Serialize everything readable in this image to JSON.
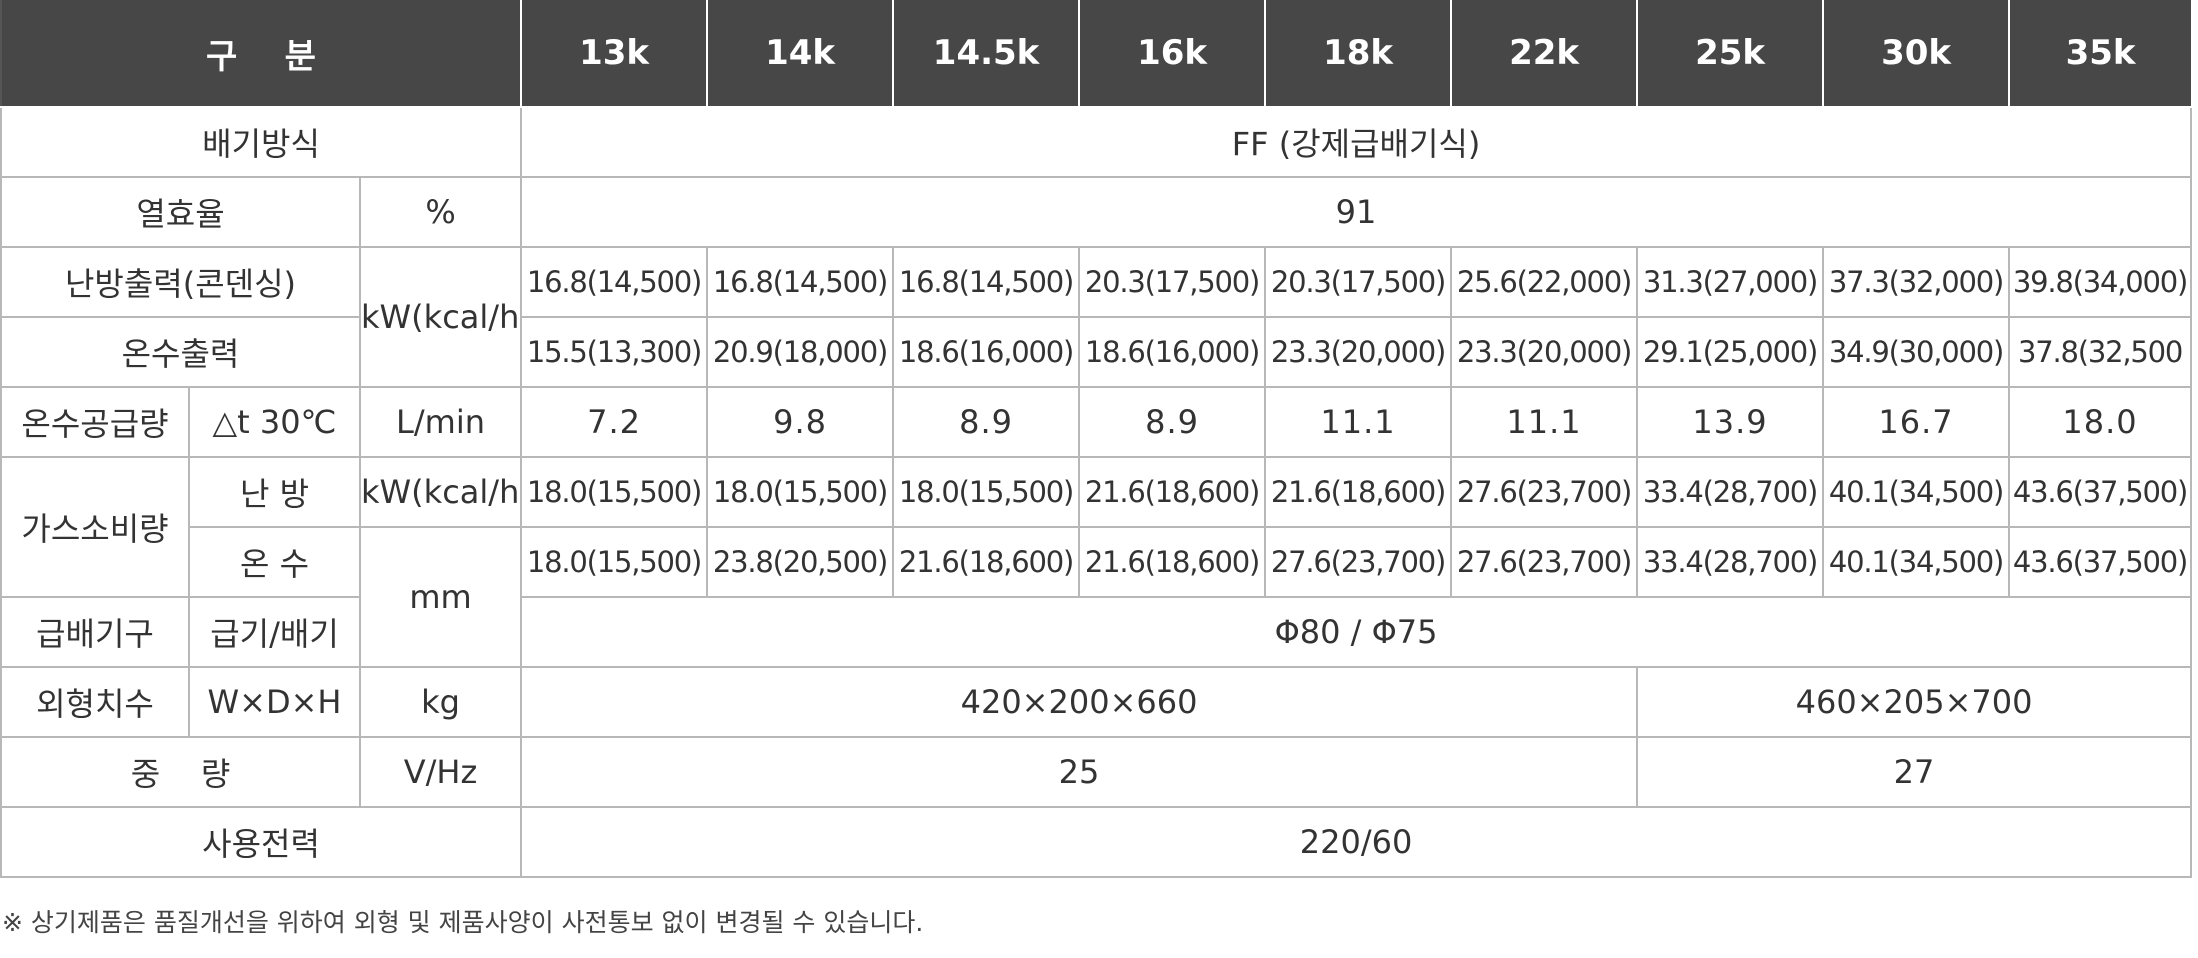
{
  "header": {
    "category": "구    분",
    "models": [
      "13k",
      "14k",
      "14.5k",
      "16k",
      "18k",
      "22k",
      "25k",
      "30k",
      "35k"
    ]
  },
  "rows": {
    "exhaust": {
      "label": "배기방식",
      "value": "FF (강제급배기식)"
    },
    "efficiency": {
      "label": "열효율",
      "unit": "%",
      "value": "91"
    },
    "heating_output": {
      "label": "난방출력(콘덴싱)",
      "unit": "kW(kcal/h)",
      "values": [
        "16.8(14,500)",
        "16.8(14,500)",
        "16.8(14,500)",
        "20.3(17,500)",
        "20.3(17,500)",
        "25.6(22,000)",
        "31.3(27,000)",
        "37.3(32,000)",
        "39.8(34,000)"
      ]
    },
    "hot_water_output": {
      "label": "온수출력",
      "values": [
        "15.5(13,300)",
        "20.9(18,000)",
        "18.6(16,000)",
        "18.6(16,000)",
        "23.3(20,000)",
        "23.3(20,000)",
        "29.1(25,000)",
        "34.9(30,000)",
        "37.8(32,500"
      ]
    },
    "hot_water_supply": {
      "label": "온수공급량",
      "sub": "△t 30℃",
      "unit": "L/min",
      "values": [
        "7.2",
        "9.8",
        "8.9",
        "8.9",
        "11.1",
        "11.1",
        "13.9",
        "16.7",
        "18.0"
      ]
    },
    "gas_consumption": {
      "label": "가스소비량",
      "heating": {
        "sub": "난 방",
        "unit": "kW(kcal/h)",
        "values": [
          "18.0(15,500)",
          "18.0(15,500)",
          "18.0(15,500)",
          "21.6(18,600)",
          "21.6(18,600)",
          "27.6(23,700)",
          "33.4(28,700)",
          "40.1(34,500)",
          "43.6(37,500)"
        ]
      },
      "hot_water": {
        "sub": "온 수",
        "values": [
          "18.0(15,500)",
          "23.8(20,500)",
          "21.6(18,600)",
          "21.6(18,600)",
          "27.6(23,700)",
          "27.6(23,700)",
          "33.4(28,700)",
          "40.1(34,500)",
          "43.6(37,500)"
        ]
      }
    },
    "flue": {
      "label": "급배기구",
      "sub": "급기/배기",
      "unit": "mm",
      "value": "Φ80 / Φ75"
    },
    "dimensions": {
      "label": "외형치수",
      "sub": "W×D×H",
      "unit": "kg",
      "value_small": "420×200×660",
      "value_large": "460×205×700"
    },
    "weight": {
      "label": "중    량",
      "unit": "V/Hz",
      "value_small": "25",
      "value_large": "27"
    },
    "power": {
      "label": "사용전력",
      "value": "220/60"
    }
  },
  "footnote": "※ 상기제품은 품질개선을 위하여 외형 및 제품사양이 사전통보 없이 변경될 수 있습니다."
}
